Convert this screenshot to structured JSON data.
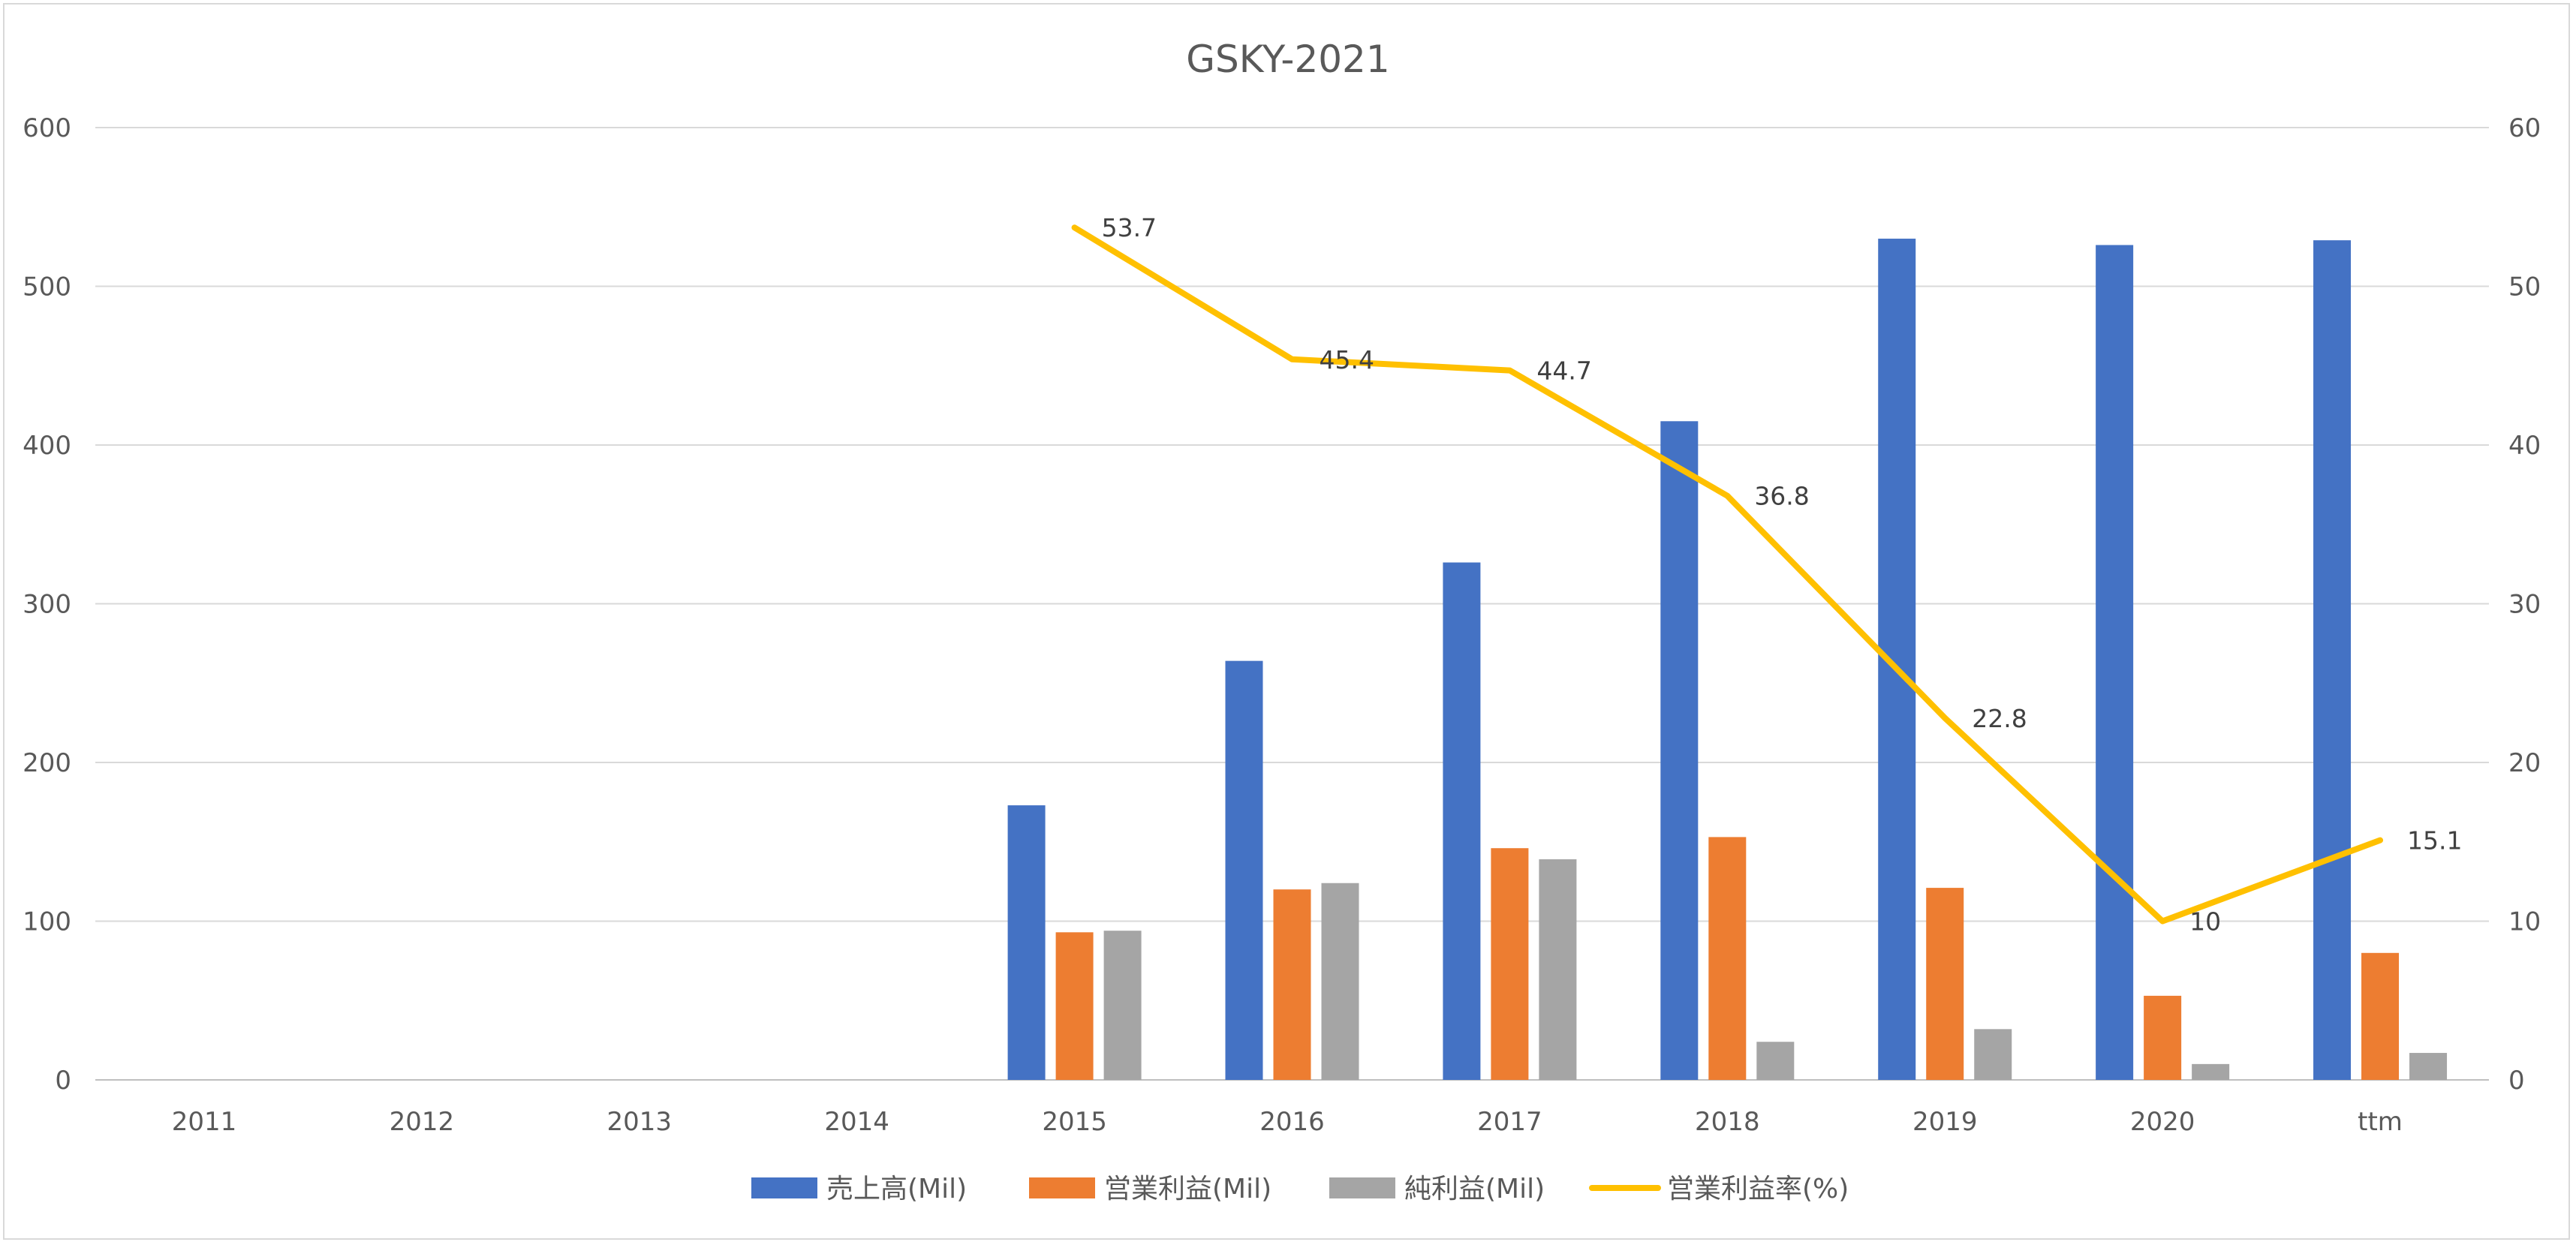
{
  "chart_data": {
    "type": "bar",
    "title": "GSKY-2021",
    "categories": [
      "2011",
      "2012",
      "2013",
      "2014",
      "2015",
      "2016",
      "2017",
      "2018",
      "2019",
      "2020",
      "ttm"
    ],
    "series": [
      {
        "name": "売上高(Mil)",
        "type": "bar",
        "axis": "left",
        "color": "#4472C4",
        "values": [
          null,
          null,
          null,
          null,
          173,
          264,
          326,
          415,
          530,
          526,
          529
        ]
      },
      {
        "name": "営業利益(Mil)",
        "type": "bar",
        "axis": "left",
        "color": "#ED7D31",
        "values": [
          null,
          null,
          null,
          null,
          93,
          120,
          146,
          153,
          121,
          53,
          80
        ]
      },
      {
        "name": "純利益(Mil)",
        "type": "bar",
        "axis": "left",
        "color": "#A5A5A5",
        "values": [
          null,
          null,
          null,
          null,
          94,
          124,
          139,
          24,
          32,
          10,
          17
        ]
      },
      {
        "name": "営業利益率(%)",
        "type": "line",
        "axis": "right",
        "color": "#FFC000",
        "values": [
          null,
          null,
          null,
          null,
          53.7,
          45.4,
          44.7,
          36.8,
          22.8,
          10,
          15.1
        ],
        "labels": [
          "",
          "",
          "",
          "",
          "53.7",
          "45.4",
          "44.7",
          "36.8",
          "22.8",
          "10",
          "15.1"
        ]
      }
    ],
    "y_left": {
      "min": 0,
      "max": 600,
      "ticks": [
        "0",
        "100",
        "200",
        "300",
        "400",
        "500",
        "600"
      ]
    },
    "y_right": {
      "min": 0,
      "max": 60,
      "ticks": [
        "0",
        "10",
        "20",
        "30",
        "40",
        "50",
        "60"
      ]
    },
    "grid": true,
    "legend": "bottom"
  }
}
